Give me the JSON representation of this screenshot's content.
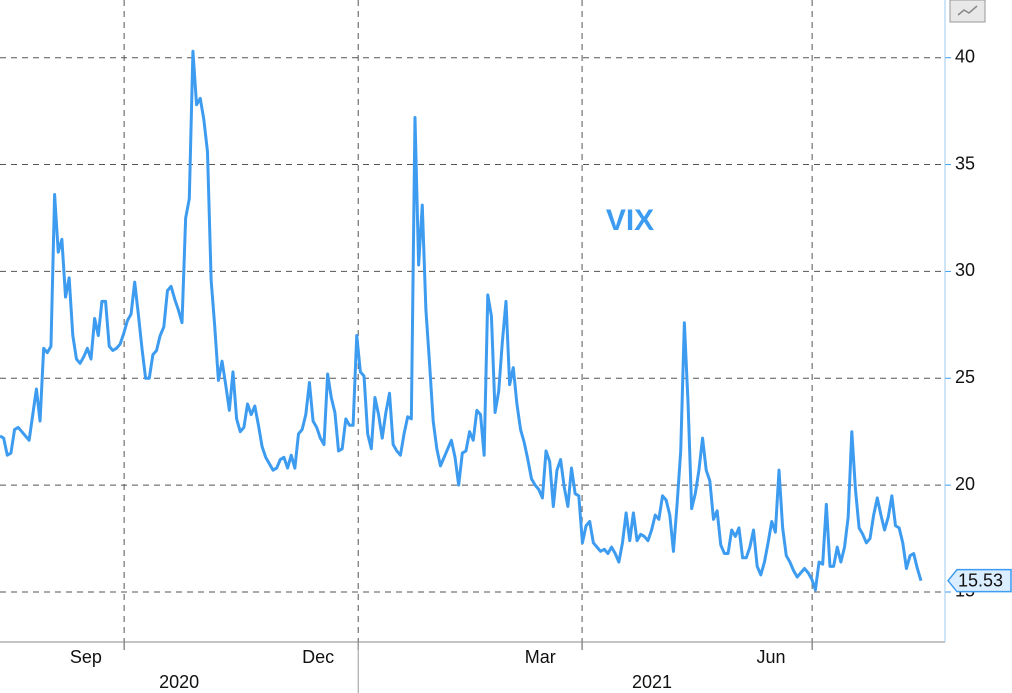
{
  "chart_data": {
    "type": "line",
    "series": [
      {
        "name": "VIX",
        "color": "#3d9cf0",
        "values": [
          22.3,
          22.2,
          21.4,
          21.5,
          22.6,
          22.7,
          22.5,
          22.3,
          22.1,
          23.3,
          24.5,
          23.0,
          26.4,
          26.2,
          26.5,
          33.6,
          30.9,
          31.5,
          28.8,
          29.7,
          27.0,
          25.9,
          25.7,
          26.0,
          26.4,
          25.9,
          27.8,
          27.0,
          28.6,
          28.6,
          26.5,
          26.3,
          26.4,
          26.6,
          27.1,
          27.7,
          28.0,
          29.5,
          28.0,
          26.4,
          25.0,
          25.0,
          26.1,
          26.3,
          27.0,
          27.4,
          29.1,
          29.3,
          28.7,
          28.2,
          27.6,
          32.5,
          33.4,
          40.3,
          37.8,
          38.1,
          37.1,
          35.6,
          29.6,
          27.4,
          24.9,
          25.8,
          24.7,
          23.5,
          25.3,
          23.1,
          22.5,
          22.7,
          23.8,
          23.3,
          23.7,
          22.8,
          21.8,
          21.3,
          21.0,
          20.7,
          20.8,
          21.2,
          21.3,
          20.8,
          21.4,
          20.8,
          22.4,
          22.6,
          23.3,
          24.8,
          23.0,
          22.7,
          22.2,
          21.9,
          25.2,
          24.1,
          23.4,
          21.6,
          21.7,
          23.1,
          22.8,
          22.8,
          27.0,
          25.3,
          25.1,
          22.4,
          21.7,
          24.1,
          23.3,
          22.2,
          23.4,
          24.3,
          21.9,
          21.6,
          21.4,
          22.4,
          23.2,
          23.1,
          37.2,
          30.3,
          33.1,
          28.2,
          25.7,
          23.0,
          21.7,
          20.9,
          21.3,
          21.7,
          22.1,
          21.3,
          20.0,
          21.5,
          21.6,
          22.5,
          22.1,
          23.5,
          23.3,
          21.4,
          28.9,
          27.9,
          23.4,
          24.4,
          26.7,
          28.6,
          24.7,
          25.5,
          23.8,
          22.6,
          22.0,
          21.2,
          20.3,
          20.0,
          19.8,
          19.4,
          21.6,
          21.1,
          19.0,
          20.7,
          21.2,
          19.9,
          19.0,
          20.8,
          19.6,
          19.5,
          17.3,
          18.1,
          18.3,
          17.3,
          17.1,
          16.9,
          17.0,
          16.8,
          17.1,
          16.8,
          16.4,
          17.3,
          18.7,
          17.4,
          18.7,
          17.4,
          17.7,
          17.6,
          17.4,
          17.9,
          18.6,
          18.4,
          19.5,
          19.3,
          18.6,
          16.9,
          19.1,
          21.6,
          27.6,
          23.9,
          18.9,
          19.6,
          20.7,
          22.2,
          20.7,
          20.2,
          18.4,
          18.8,
          17.2,
          16.8,
          16.8,
          17.9,
          17.6,
          18.0,
          16.6,
          16.6,
          17.1,
          17.9,
          16.2,
          15.8,
          16.4,
          17.3,
          18.3,
          17.8,
          20.7,
          18.0,
          16.7,
          16.4,
          16.0,
          15.7,
          15.9,
          16.1,
          15.9,
          15.6,
          15.1,
          16.4,
          16.3,
          19.1,
          16.2,
          16.2,
          17.1,
          16.4,
          17.1,
          18.5,
          22.5,
          19.8,
          18.0,
          17.7,
          17.3,
          17.5,
          18.6,
          19.4,
          18.6,
          17.9,
          18.5,
          19.5,
          18.1,
          18.0,
          17.3,
          16.1,
          16.7,
          16.8,
          16.1,
          15.53
        ]
      }
    ],
    "xlim": [
      0,
      259.6
    ],
    "xticks": [
      {
        "value": 23.6,
        "label": "Sep"
      },
      {
        "value": 87.4,
        "label": "Dec"
      },
      {
        "value": 148.4,
        "label": "Mar"
      },
      {
        "value": 211.8,
        "label": "Jun"
      }
    ],
    "xgrid": [
      34.1,
      98.4,
      159.9,
      223.1
    ],
    "years": [
      {
        "value": 49.2,
        "label": "2020"
      },
      {
        "value": 179.1,
        "label": "2021"
      }
    ],
    "year_divider": 98.4,
    "ylim": [
      12.66,
      42.7
    ],
    "yticks": [
      15,
      20,
      25,
      30,
      35,
      40
    ],
    "grid": true
  }
}
